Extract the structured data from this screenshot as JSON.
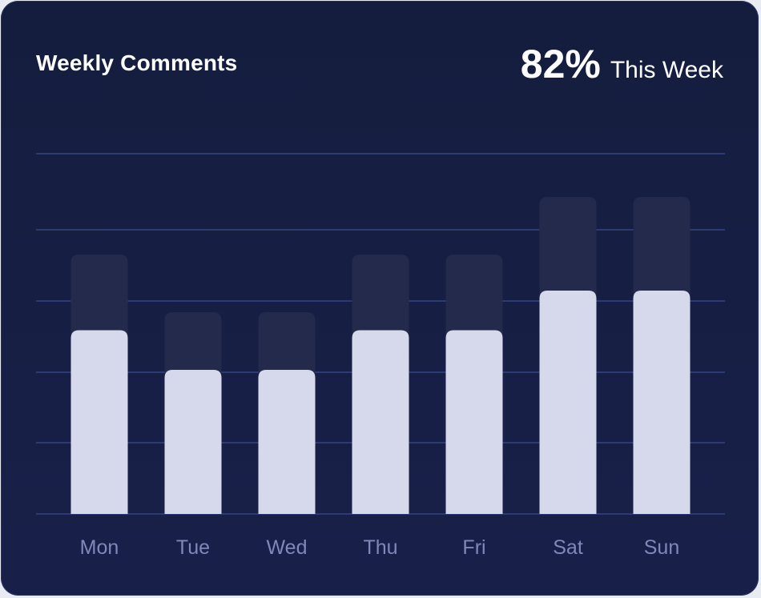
{
  "header": {
    "title": "Weekly Comments",
    "summary_value": "82%",
    "summary_label": "This Week"
  },
  "colors": {
    "background": "#161e41",
    "bar_foreground": "#d6d9ec",
    "bar_background": "#232a4c",
    "gridline": "#2e3a73",
    "tick_label": "#7f88b9"
  },
  "chart_data": {
    "type": "bar",
    "title": "Weekly Comments",
    "categories": [
      "Mon",
      "Tue",
      "Wed",
      "Thu",
      "Fri",
      "Sat",
      "Sun"
    ],
    "series": [
      {
        "values": [
          51,
          40,
          40,
          51,
          51,
          62,
          62
        ]
      },
      {
        "values": [
          72,
          56,
          56,
          72,
          72,
          88,
          88
        ]
      }
    ],
    "xlabel": "",
    "ylabel": "",
    "ylim": [
      0,
      100
    ],
    "grid": true,
    "legend": "none"
  }
}
